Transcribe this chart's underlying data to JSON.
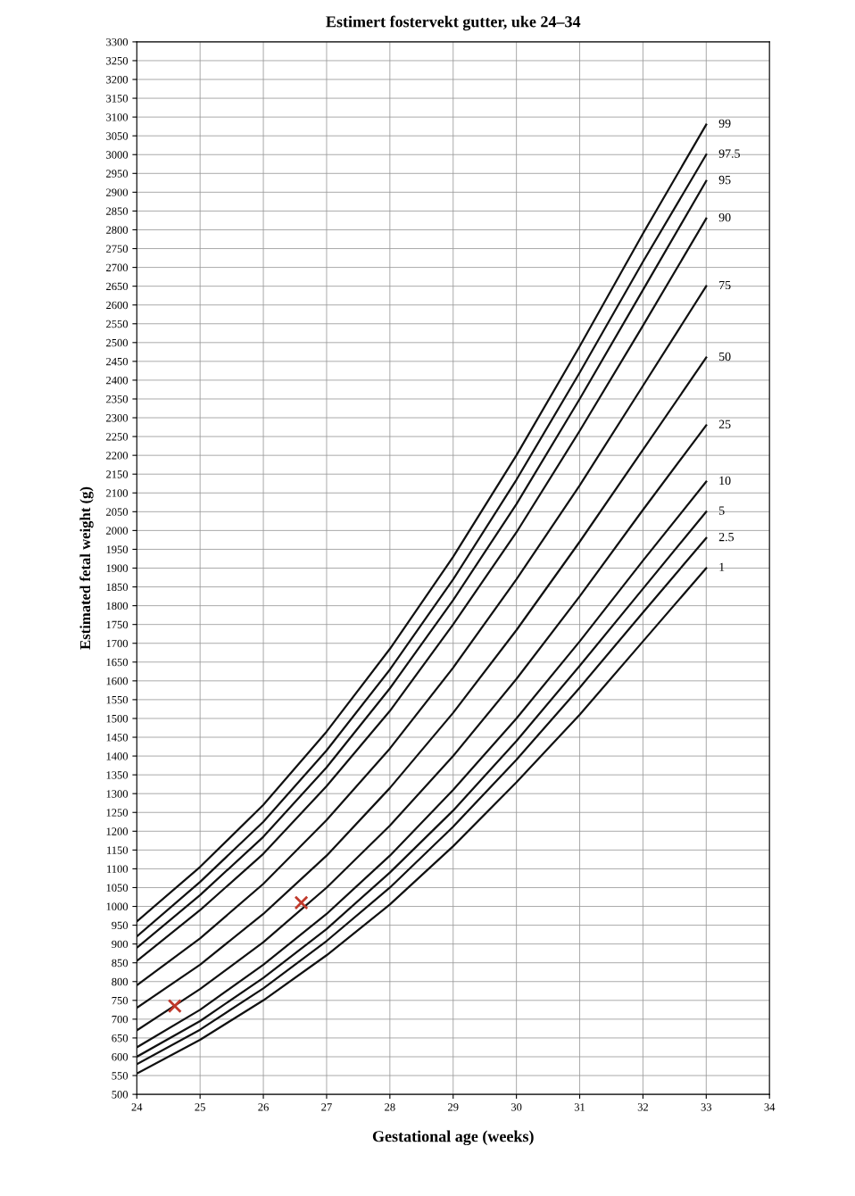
{
  "chart_data": {
    "type": "line",
    "title": "Estimert fostervekt gutter, uke 24–34",
    "xlabel": "Gestational age (weeks)",
    "ylabel": "Estimated fetal weight (g)",
    "x": [
      24,
      25,
      26,
      27,
      28,
      29,
      30,
      31,
      32,
      33
    ],
    "xlim": [
      24,
      34
    ],
    "xticks": [
      24,
      25,
      26,
      27,
      28,
      29,
      30,
      31,
      32,
      33,
      34
    ],
    "ylim": [
      500,
      3300
    ],
    "yticks": [
      500,
      550,
      600,
      650,
      700,
      750,
      800,
      850,
      900,
      950,
      1000,
      1050,
      1100,
      1150,
      1200,
      1250,
      1300,
      1350,
      1400,
      1450,
      1500,
      1550,
      1600,
      1650,
      1700,
      1750,
      1800,
      1850,
      1900,
      1950,
      2000,
      2050,
      2100,
      2150,
      2200,
      2250,
      2300,
      2350,
      2400,
      2450,
      2500,
      2550,
      2600,
      2650,
      2700,
      2750,
      2800,
      2850,
      2900,
      2950,
      3000,
      3050,
      3100,
      3150,
      3200,
      3250,
      3300
    ],
    "grid": true,
    "marker": "none",
    "line_style": "solid",
    "series": [
      {
        "name": "99",
        "color": "#111111",
        "values": [
          960,
          1105,
          1270,
          1465,
          1685,
          1930,
          2200,
          2490,
          2790,
          3080
        ]
      },
      {
        "name": "97.5",
        "color": "#111111",
        "values": [
          920,
          1065,
          1225,
          1415,
          1630,
          1870,
          2135,
          2420,
          2715,
          3000
        ]
      },
      {
        "name": "95",
        "color": "#111111",
        "values": [
          890,
          1030,
          1185,
          1370,
          1580,
          1815,
          2070,
          2350,
          2640,
          2930
        ]
      },
      {
        "name": "90",
        "color": "#111111",
        "values": [
          855,
          990,
          1140,
          1320,
          1520,
          1750,
          1995,
          2265,
          2545,
          2830
        ]
      },
      {
        "name": "75",
        "color": "#111111",
        "values": [
          790,
          915,
          1060,
          1230,
          1420,
          1635,
          1870,
          2120,
          2385,
          2650
        ]
      },
      {
        "name": "50",
        "color": "#111111",
        "values": [
          730,
          845,
          980,
          1135,
          1315,
          1515,
          1735,
          1970,
          2215,
          2460
        ]
      },
      {
        "name": "25",
        "color": "#111111",
        "values": [
          670,
          780,
          905,
          1050,
          1215,
          1400,
          1605,
          1825,
          2055,
          2280
        ]
      },
      {
        "name": "10",
        "color": "#111111",
        "values": [
          625,
          725,
          845,
          980,
          1135,
          1310,
          1500,
          1705,
          1920,
          2130
        ]
      },
      {
        "name": "5",
        "color": "#111111",
        "values": [
          600,
          695,
          810,
          940,
          1090,
          1255,
          1440,
          1640,
          1845,
          2050
        ]
      },
      {
        "name": "2.5",
        "color": "#111111",
        "values": [
          580,
          672,
          782,
          908,
          1050,
          1212,
          1390,
          1582,
          1782,
          1980
        ]
      },
      {
        "name": "1",
        "color": "#111111",
        "values": [
          555,
          645,
          750,
          870,
          1005,
          1160,
          1330,
          1510,
          1705,
          1900
        ]
      },
      {
        "type": "scatter",
        "x": [
          24.6,
          26.6
        ],
        "color": "#c0392b",
        "marker": "cross",
        "values": [
          735,
          1010
        ]
      }
    ]
  }
}
